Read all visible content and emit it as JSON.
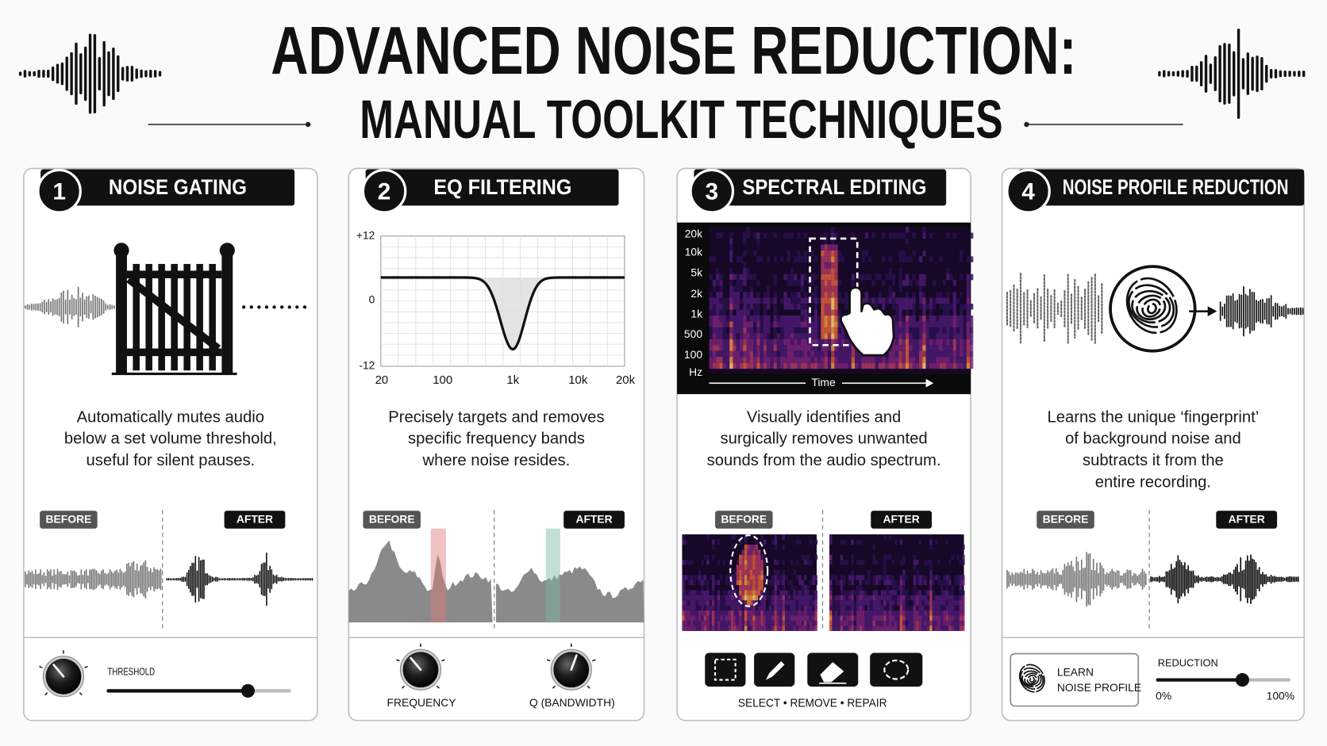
{
  "header": {
    "title": "ADVANCED NOISE REDUCTION:",
    "subtitle": "MANUAL TOOLKIT TECHNIQUES"
  },
  "panels": [
    {
      "number": "1",
      "title": "NOISE GATING",
      "description": [
        "Automatically mutes audio",
        "below a set volume threshold,",
        "useful for silent pauses."
      ],
      "before": "BEFORE",
      "after": "AFTER",
      "control_label": "THRESHOLD"
    },
    {
      "number": "2",
      "title": "EQ FILTERING",
      "eq_y_labels": [
        "+12",
        "0",
        "-12"
      ],
      "eq_x_labels": [
        "20",
        "100",
        "1k",
        "10k",
        "20k"
      ],
      "description": [
        "Precisely targets and removes",
        "specific frequency bands",
        "where noise resides."
      ],
      "before": "BEFORE",
      "after": "AFTER",
      "controls": [
        "FREQUENCY",
        "Q (BANDWIDTH)"
      ]
    },
    {
      "number": "3",
      "title": "SPECTRAL EDITING",
      "spectrogram_y_labels": [
        "20k",
        "10k",
        "5k",
        "2k",
        "1k",
        "500",
        "100",
        "Hz"
      ],
      "spectrogram_x_label": "Time",
      "description": [
        "Visually identifies and",
        "surgically removes unwanted",
        "sounds from the audio spectrum."
      ],
      "before": "BEFORE",
      "after": "AFTER",
      "tools_caption": "SELECT • REMOVE • REPAIR"
    },
    {
      "number": "4",
      "title": "NOISE PROFILE REDUCTION",
      "description": [
        "Learns the unique ‘fingerprint’",
        "of background noise and",
        "subtracts it from the",
        "entire recording."
      ],
      "before": "BEFORE",
      "after": "AFTER",
      "button": [
        "LEARN",
        "NOISE PROFILE"
      ],
      "slider_label": "REDUCTION",
      "slider_min": "0%",
      "slider_max": "100%"
    }
  ]
}
